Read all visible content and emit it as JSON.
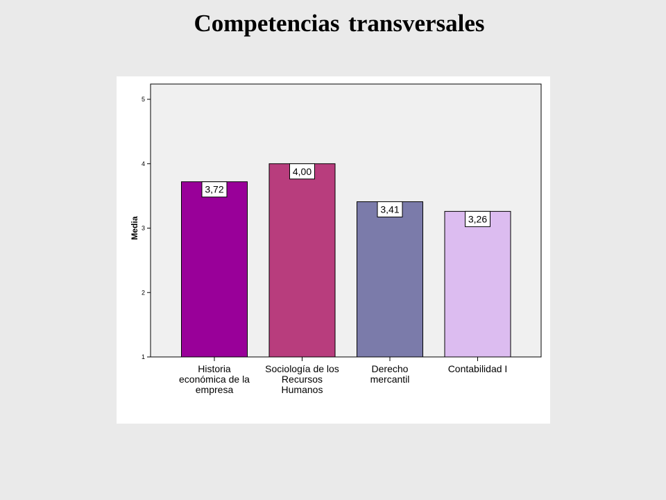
{
  "page": {
    "title": "Competencias transversales"
  },
  "chart_data": {
    "type": "bar",
    "title": "",
    "xlabel": "",
    "ylabel": "Media",
    "ylim": [
      1,
      5
    ],
    "yticks": [
      "1",
      "2",
      "3",
      "4",
      "5"
    ],
    "grid": false,
    "plot_background": "#f0f0f0",
    "categories": [
      [
        "Historia",
        "económica de la",
        "empresa"
      ],
      [
        "Sociología de los",
        "Recursos",
        "Humanos"
      ],
      [
        "Derecho",
        "mercantil"
      ],
      [
        "Contabilidad I"
      ]
    ],
    "values": [
      3.72,
      4.0,
      3.41,
      3.26
    ],
    "value_labels": [
      "3,72",
      "4,00",
      "3,41",
      "3,26"
    ],
    "colors": [
      "#990099",
      "#b83d7d",
      "#7b7baa",
      "#dcbcf0"
    ]
  }
}
